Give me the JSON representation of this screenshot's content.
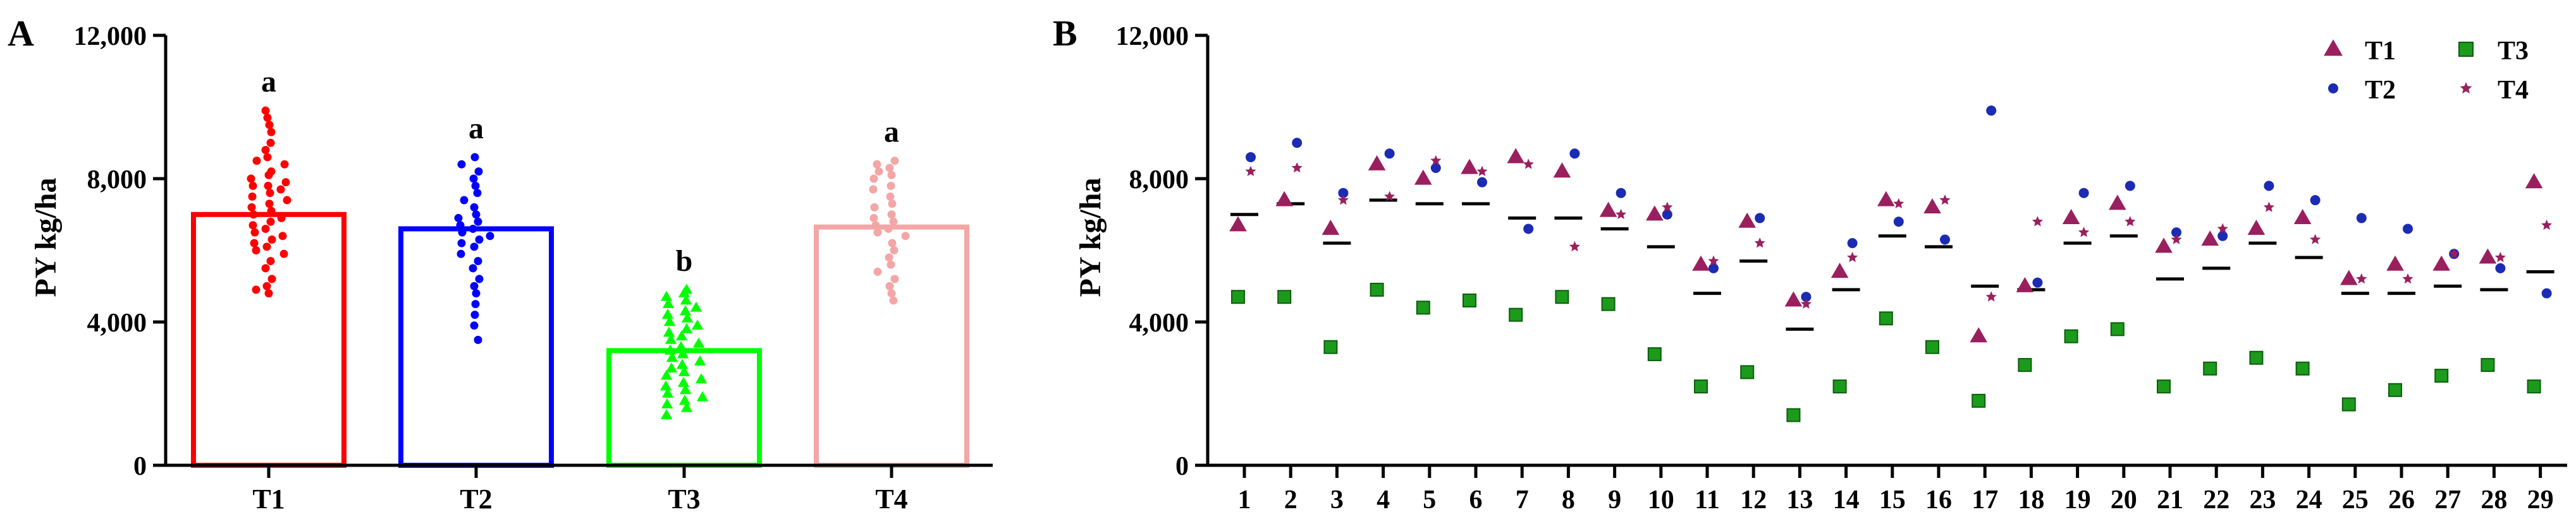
{
  "chart_data": [
    {
      "panel": "A",
      "type": "bar",
      "ylabel": "PY kg/ha",
      "ylim": [
        0,
        12000
      ],
      "yticks": [
        0,
        4000,
        8000,
        12000
      ],
      "ytick_labels": [
        "0",
        "4,000",
        "8,000",
        "12,000"
      ],
      "categories": [
        "T1",
        "T2",
        "T3",
        "T4"
      ],
      "values": [
        7000,
        6600,
        3200,
        6650
      ],
      "letters": [
        "a",
        "a",
        "b",
        "a"
      ],
      "colors": [
        "#ff0000",
        "#0000ff",
        "#00ff00",
        "#f4a6a6"
      ],
      "markers": [
        "circle",
        "circle",
        "triangle",
        "circle"
      ],
      "points": [
        [
          9900,
          9700,
          9500,
          9300,
          9000,
          8800,
          8600,
          8500,
          8400,
          8200,
          8100,
          8000,
          7900,
          7800,
          7800,
          7700,
          7600,
          7500,
          7400,
          7300,
          7200,
          7100,
          7000,
          6900,
          6800,
          6700,
          6600,
          6500,
          6400,
          6300,
          6200,
          6100,
          6000,
          5900,
          5700,
          5500,
          5200,
          5000,
          4900,
          4800
        ],
        [
          8600,
          8400,
          8200,
          8000,
          7800,
          7600,
          7400,
          7200,
          7000,
          6900,
          6800,
          6700,
          6600,
          6500,
          6400,
          6300,
          6200,
          6100,
          5900,
          5700,
          5500,
          5200,
          5000,
          4800,
          4500,
          4200,
          3900,
          3500
        ],
        [
          4900,
          4800,
          4700,
          4600,
          4500,
          4400,
          4300,
          4200,
          4100,
          4000,
          3900,
          3800,
          3700,
          3600,
          3500,
          3400,
          3300,
          3200,
          3100,
          3000,
          2900,
          2800,
          2700,
          2600,
          2500,
          2400,
          2300,
          2200,
          2100,
          2000,
          1900,
          1800,
          1700,
          1600,
          1400
        ],
        [
          8500,
          8400,
          8300,
          8200,
          8100,
          8000,
          7800,
          7700,
          7500,
          7300,
          7200,
          7000,
          6900,
          6800,
          6700,
          6600,
          6500,
          6400,
          6200,
          6000,
          5800,
          5600,
          5400,
          5200,
          5000,
          4800,
          4600
        ]
      ]
    },
    {
      "panel": "B",
      "type": "scatter",
      "ylabel": "PY kg/ha",
      "ylim": [
        0,
        12000
      ],
      "yticks": [
        0,
        4000,
        8000,
        12000
      ],
      "ytick_labels": [
        "0",
        "4,000",
        "8,000",
        "12,000"
      ],
      "x": [
        1,
        2,
        3,
        4,
        5,
        6,
        7,
        8,
        9,
        10,
        11,
        12,
        13,
        14,
        15,
        16,
        17,
        18,
        19,
        20,
        21,
        22,
        23,
        24,
        25,
        26,
        27,
        28,
        29
      ],
      "mean": [
        7000,
        7300,
        6200,
        7400,
        7300,
        7300,
        6900,
        6900,
        6600,
        6100,
        4800,
        5700,
        3800,
        4900,
        6400,
        6100,
        5000,
        4900,
        6200,
        6400,
        5200,
        5500,
        6200,
        5800,
        4800,
        4800,
        5000,
        4900,
        5400
      ],
      "series": [
        {
          "name": "T1",
          "marker": "triangle",
          "color": "#9a1f5e",
          "values": [
            6700,
            7400,
            6600,
            8400,
            8000,
            8300,
            8600,
            8200,
            7100,
            7000,
            5600,
            6800,
            4600,
            5400,
            7400,
            7200,
            3600,
            5000,
            6900,
            7300,
            6100,
            6300,
            6600,
            6900,
            5200,
            5600,
            5600,
            5800,
            7900
          ]
        },
        {
          "name": "T2",
          "marker": "circle",
          "color": "#1b2bb4",
          "values": [
            8600,
            9000,
            7600,
            8700,
            8300,
            7900,
            6600,
            8700,
            7600,
            7000,
            5500,
            6900,
            4700,
            6200,
            6800,
            6300,
            9900,
            5100,
            7600,
            7800,
            6500,
            6400,
            7800,
            7400,
            6900,
            6600,
            5900,
            5500,
            4800
          ]
        },
        {
          "name": "T3",
          "marker": "square",
          "color": "#1c9a1c",
          "values": [
            4700,
            4700,
            3300,
            4900,
            4400,
            4600,
            4200,
            4700,
            4500,
            3100,
            2200,
            2600,
            1400,
            2200,
            4100,
            3300,
            1800,
            2800,
            3600,
            3800,
            2200,
            2700,
            3000,
            2700,
            1700,
            2100,
            2500,
            2800,
            2200
          ]
        },
        {
          "name": "T4",
          "marker": "star",
          "color": "#9a1f5e",
          "values": [
            8200,
            8300,
            7400,
            7500,
            8500,
            8200,
            8400,
            6100,
            7000,
            7200,
            5700,
            6200,
            4500,
            5800,
            7300,
            7400,
            4700,
            6800,
            6500,
            6800,
            6300,
            6600,
            7200,
            6300,
            5200,
            5200,
            5900,
            5800,
            6700
          ]
        }
      ]
    }
  ]
}
